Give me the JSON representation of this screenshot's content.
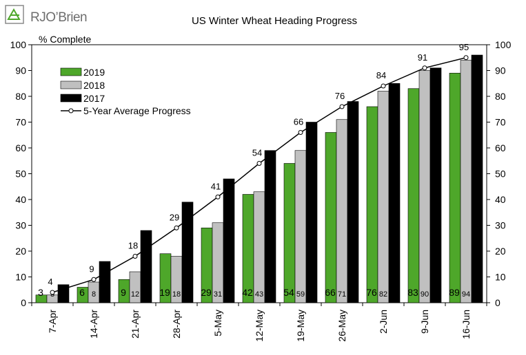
{
  "logo": {
    "text_main": "RJO",
    "text_accent": "’Brien"
  },
  "chart_data": {
    "type": "bar",
    "title": "US Winter Wheat Heading Progress",
    "ylabel": "% Complete",
    "ylim": [
      0,
      100
    ],
    "yticks": [
      0,
      10,
      20,
      30,
      40,
      50,
      60,
      70,
      80,
      90,
      100
    ],
    "categories": [
      "7-Apr",
      "14-Apr",
      "21-Apr",
      "28-Apr",
      "5-May",
      "12-May",
      "19-May",
      "26-May",
      "2-Jun",
      "9-Jun",
      "16-Jun"
    ],
    "series": [
      {
        "name": "2019",
        "color": "#4ea72a",
        "values": [
          3,
          6,
          9,
          19,
          29,
          42,
          54,
          66,
          76,
          83,
          89
        ]
      },
      {
        "name": "2018",
        "color": "#c0c0c0",
        "values": [
          3,
          8,
          12,
          18,
          31,
          43,
          59,
          71,
          82,
          90,
          94
        ]
      },
      {
        "name": "2017",
        "color": "#000000",
        "values": [
          7,
          16,
          28,
          39,
          48,
          59,
          70,
          78,
          85,
          91,
          96
        ]
      }
    ],
    "line_series": {
      "name": "5-Year Average Progress",
      "values": [
        4,
        9,
        18,
        29,
        41,
        54,
        66,
        76,
        84,
        91,
        95
      ]
    },
    "legend_position": "top-left",
    "grid": false
  }
}
